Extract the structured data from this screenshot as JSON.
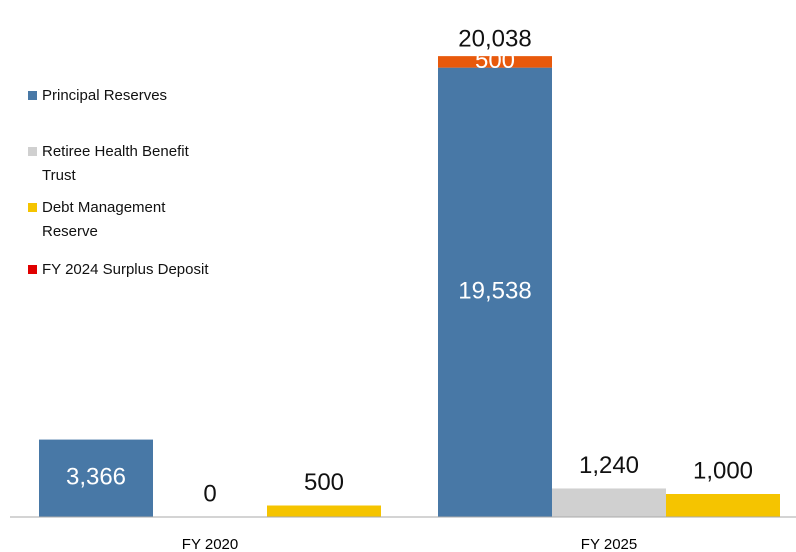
{
  "chart_data": {
    "type": "bar",
    "categories": [
      "FY 2020",
      "FY 2025"
    ],
    "ylim": [
      0,
      21000
    ],
    "series": [
      {
        "name": "Principal Reserves",
        "color": "#4878a6",
        "values": [
          3366,
          19538
        ],
        "value_labels": [
          "3,366",
          "19,538"
        ]
      },
      {
        "name": "Retiree Health Benefit Trust",
        "color": "#d0d0d0",
        "values": [
          0,
          1240
        ],
        "value_labels": [
          "0",
          "1,240"
        ]
      },
      {
        "name": "Debt Management Reserve",
        "color": "#f5c400",
        "values": [
          500,
          1000
        ],
        "value_labels": [
          "500",
          "1,000"
        ]
      },
      {
        "name": "FY 2024 Surplus Deposit",
        "color": "#e8590c",
        "legend_color": "#e00000",
        "stacked": true,
        "values": [
          null,
          500
        ],
        "value_labels": [
          null,
          "500"
        ]
      }
    ],
    "totals": [
      null,
      20038
    ],
    "total_labels": [
      null,
      "20,038"
    ]
  }
}
